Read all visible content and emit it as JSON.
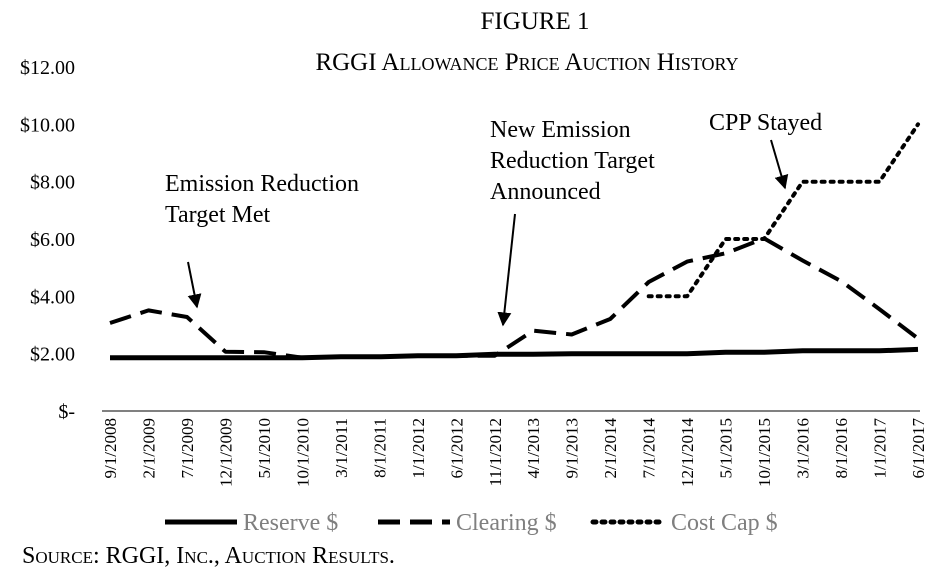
{
  "chart_data": {
    "type": "line",
    "title": "FIGURE 1",
    "subtitle": "RGGI Allowance Price Auction History",
    "source": "Source: RGGI, Inc., Auction Results.",
    "categories": [
      "9/1/2008",
      "2/1/2009",
      "7/1/2009",
      "12/1/2009",
      "5/1/2010",
      "10/1/2010",
      "3/1/2011",
      "8/1/2011",
      "1/1/2012",
      "6/1/2012",
      "11/1/2012",
      "4/1/2013",
      "9/1/2013",
      "2/1/2014",
      "7/1/2014",
      "12/1/2014",
      "5/1/2015",
      "10/1/2015",
      "3/1/2016",
      "8/1/2016",
      "1/1/2017",
      "6/1/2017"
    ],
    "series": [
      {
        "name": "Reserve $",
        "color": "#000000",
        "dash": "solid",
        "values": [
          1.86,
          1.86,
          1.86,
          1.86,
          1.86,
          1.86,
          1.89,
          1.89,
          1.93,
          1.93,
          1.98,
          1.98,
          2.0,
          2.0,
          2.0,
          2.0,
          2.05,
          2.05,
          2.1,
          2.1,
          2.1,
          2.15
        ]
      },
      {
        "name": "Clearing $",
        "color": "#000000",
        "dash": "dashed",
        "values": [
          3.07,
          3.51,
          3.28,
          2.07,
          2.05,
          1.86,
          1.89,
          1.89,
          1.93,
          1.93,
          1.93,
          2.8,
          2.67,
          3.21,
          4.5,
          5.21,
          5.5,
          6.02,
          5.25,
          4.53,
          3.55,
          2.53
        ]
      },
      {
        "name": "Cost Cap $",
        "color": "#000000",
        "dash": "dotted",
        "values": [
          null,
          null,
          null,
          null,
          null,
          null,
          null,
          null,
          null,
          null,
          null,
          null,
          null,
          null,
          4.0,
          4.0,
          6.0,
          6.0,
          8.0,
          8.0,
          8.0,
          10.0
        ]
      }
    ],
    "ylim": [
      0,
      12
    ],
    "yticks": [
      {
        "value": 0,
        "label": "$-"
      },
      {
        "value": 2,
        "label": "$2.00"
      },
      {
        "value": 4,
        "label": "$4.00"
      },
      {
        "value": 6,
        "label": "$6.00"
      },
      {
        "value": 8,
        "label": "$8.00"
      },
      {
        "value": 10,
        "label": "$10.00"
      },
      {
        "value": 12,
        "label": "$12.00"
      }
    ],
    "grid": false,
    "legend": "bottom",
    "annotations": [
      {
        "lines": [
          "Emission Reduction",
          "Target Met"
        ]
      },
      {
        "lines": [
          "New Emission",
          "Reduction Target",
          "Announced"
        ]
      },
      {
        "lines": [
          "CPP Stayed"
        ]
      }
    ]
  }
}
